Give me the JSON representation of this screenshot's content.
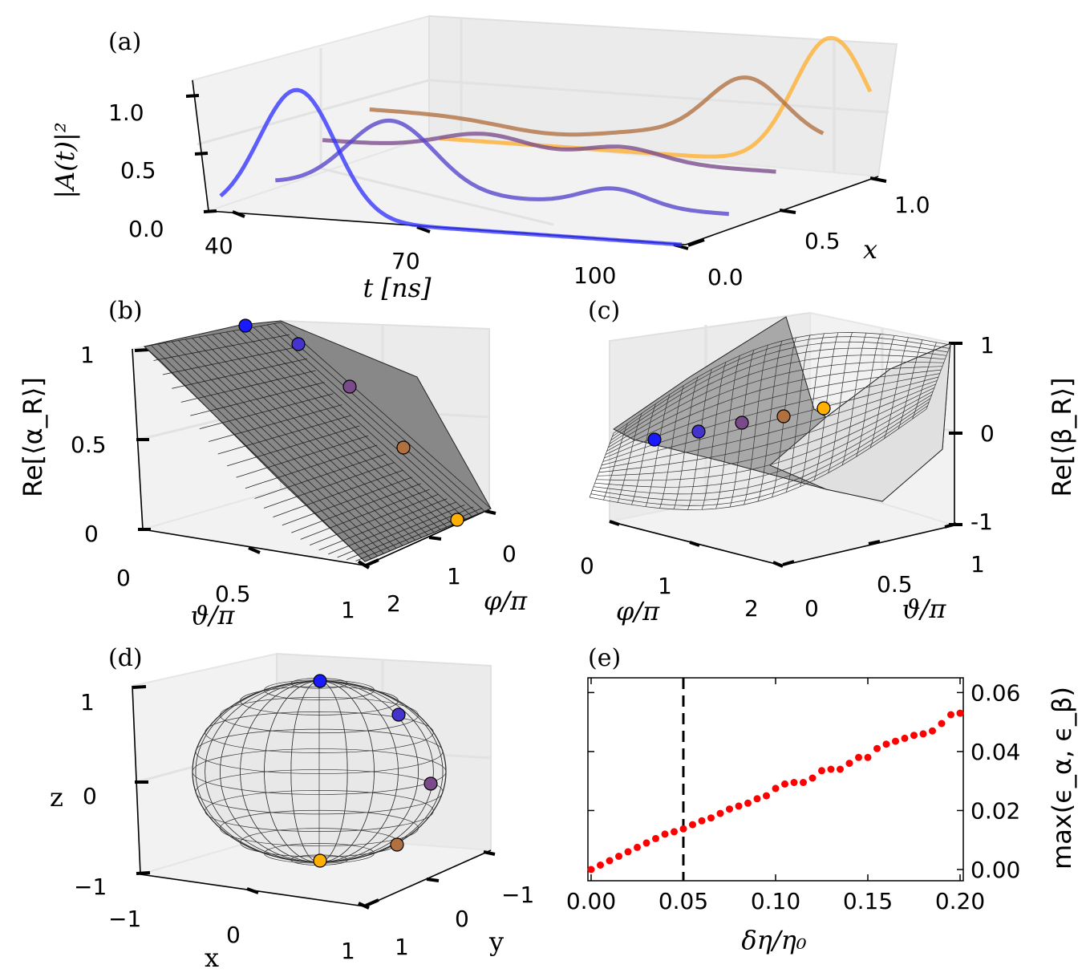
{
  "panels": {
    "a": {
      "label": "(a)",
      "zlabel": "|A(t)|²",
      "xlabel": "t [ns]",
      "ylabel": "x",
      "zticks": [
        "0.0",
        "0.5",
        "1.0"
      ],
      "tticks": [
        "40",
        "70",
        "100"
      ],
      "xticks": [
        "0.0",
        "0.5",
        "1.0"
      ]
    },
    "b": {
      "label": "(b)",
      "zlabel": "Re[⟨α_R⟩]",
      "zticks": [
        "0",
        "0.5",
        "1"
      ],
      "xticks": [
        "0",
        "0.5",
        "1"
      ],
      "yticks": [
        "0",
        "1",
        "2"
      ],
      "xlabel": "ϑ/π",
      "ylabel": "φ/π"
    },
    "c": {
      "label": "(c)",
      "zlabel": "Re[⟨β_R⟩]",
      "zticks": [
        "1",
        "0",
        "-1"
      ],
      "xticks": [
        "0",
        "1",
        "2"
      ],
      "yticks": [
        "0",
        "0.5",
        "1"
      ],
      "xlabel": "φ/π",
      "ylabel": "ϑ/π"
    },
    "d": {
      "label": "(d)",
      "zlabel": "z",
      "zticks": [
        "1",
        "0",
        "−1"
      ],
      "xticks": [
        "−1",
        "0",
        "1"
      ],
      "yticks": [
        "−1",
        "0",
        "1"
      ],
      "xlabel": "x",
      "ylabel": "y"
    },
    "e": {
      "label": "(e)",
      "xlabel": "δη/η₀",
      "ylabel": "max(ϵ_α, ϵ_β)",
      "xticks": [
        "0.00",
        "0.05",
        "0.10",
        "0.15",
        "0.20"
      ],
      "yticks": [
        "0.00",
        "0.02",
        "0.04",
        "0.06"
      ]
    }
  },
  "colors": {
    "x0": "#3333ff",
    "x025": "#5544cc",
    "x05": "#7a4a8a",
    "x075": "#b07040",
    "x1": "#ffb030",
    "surface": "#999999",
    "points_e": "#ff0000"
  },
  "chart_data": [
    {
      "type": "line",
      "panel": "a",
      "x_name": "t [ns]",
      "series": [
        {
          "x_coord": 0.0,
          "peak_t": 50,
          "peak_value": 1.1
        },
        {
          "x_coord": 0.25,
          "peak_t": 56,
          "peak_value": 0.7
        },
        {
          "x_coord": 0.5,
          "peak_t": 62,
          "peak_value": 0.45
        },
        {
          "x_coord": 0.75,
          "peak_t": 90,
          "peak_value": 0.7
        },
        {
          "x_coord": 1.0,
          "peak_t": 95,
          "peak_value": 1.1
        }
      ]
    },
    {
      "type": "scatter",
      "panel": "e",
      "xlabel": "δη/η₀",
      "ylabel": "max(ϵ_α, ϵ_β)",
      "xlim": [
        0,
        0.2
      ],
      "ylim": [
        0,
        0.065
      ],
      "vline_x": 0.05,
      "x": [
        0.0,
        0.005,
        0.01,
        0.015,
        0.02,
        0.025,
        0.03,
        0.035,
        0.04,
        0.045,
        0.05,
        0.055,
        0.06,
        0.065,
        0.07,
        0.075,
        0.08,
        0.085,
        0.09,
        0.095,
        0.1,
        0.105,
        0.11,
        0.115,
        0.12,
        0.125,
        0.13,
        0.135,
        0.14,
        0.145,
        0.15,
        0.155,
        0.16,
        0.165,
        0.17,
        0.175,
        0.18,
        0.185,
        0.19,
        0.195,
        0.2
      ],
      "y": [
        0.0,
        0.0015,
        0.003,
        0.0045,
        0.006,
        0.0075,
        0.009,
        0.0105,
        0.012,
        0.0128,
        0.0138,
        0.0152,
        0.0165,
        0.0175,
        0.019,
        0.0205,
        0.0215,
        0.0225,
        0.024,
        0.025,
        0.0275,
        0.029,
        0.0295,
        0.0295,
        0.031,
        0.0335,
        0.034,
        0.034,
        0.036,
        0.038,
        0.038,
        0.041,
        0.0425,
        0.0435,
        0.0445,
        0.0455,
        0.046,
        0.047,
        0.0495,
        0.0525,
        0.053
      ]
    }
  ]
}
